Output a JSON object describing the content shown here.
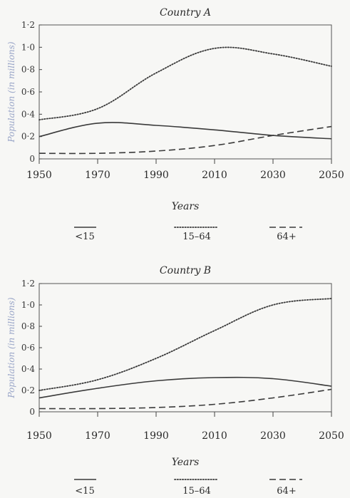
{
  "chart_data": [
    {
      "type": "line",
      "title": "Country A",
      "xlabel": "Years",
      "ylabel": "Population (in millions)",
      "xlim": [
        1950,
        2050
      ],
      "ylim": [
        0,
        1.2
      ],
      "xticks": [
        "1950",
        "1970",
        "1990",
        "2010",
        "2030",
        "2050"
      ],
      "yticks": [
        "0",
        "0·2",
        "0·4",
        "0·6",
        "0·8",
        "1·0",
        "1·2"
      ],
      "legend_position": "bottom",
      "series": [
        {
          "name": "<15",
          "style": "solid",
          "color": "#3a3a3a",
          "x": [
            1950,
            1970,
            1990,
            2010,
            2030,
            2050
          ],
          "y": [
            0.2,
            0.32,
            0.3,
            0.26,
            0.21,
            0.18
          ]
        },
        {
          "name": "15–64",
          "style": "dotted",
          "color": "#3a3a3a",
          "x": [
            1950,
            1970,
            1990,
            2010,
            2030,
            2050
          ],
          "y": [
            0.35,
            0.45,
            0.77,
            0.99,
            0.94,
            0.83
          ]
        },
        {
          "name": "64+",
          "style": "dashed",
          "color": "#3a3a3a",
          "x": [
            1950,
            1970,
            1990,
            2010,
            2030,
            2050
          ],
          "y": [
            0.05,
            0.05,
            0.07,
            0.12,
            0.21,
            0.29
          ]
        }
      ]
    },
    {
      "type": "line",
      "title": "Country B",
      "xlabel": "Years",
      "ylabel": "Population (in millions)",
      "xlim": [
        1950,
        2050
      ],
      "ylim": [
        0,
        1.2
      ],
      "xticks": [
        "1950",
        "1970",
        "1990",
        "2010",
        "2030",
        "2050"
      ],
      "yticks": [
        "0",
        "0·2",
        "0·4",
        "0·6",
        "0·8",
        "1·0",
        "1·2"
      ],
      "legend_position": "bottom",
      "series": [
        {
          "name": "<15",
          "style": "solid",
          "color": "#3a3a3a",
          "x": [
            1950,
            1970,
            1990,
            2010,
            2030,
            2050
          ],
          "y": [
            0.13,
            0.22,
            0.29,
            0.32,
            0.31,
            0.24
          ]
        },
        {
          "name": "15–64",
          "style": "dotted",
          "color": "#3a3a3a",
          "x": [
            1950,
            1970,
            1990,
            2010,
            2030,
            2050
          ],
          "y": [
            0.2,
            0.3,
            0.5,
            0.76,
            1.0,
            1.06
          ]
        },
        {
          "name": "64+",
          "style": "dashed",
          "color": "#3a3a3a",
          "x": [
            1950,
            1970,
            1990,
            2010,
            2030,
            2050
          ],
          "y": [
            0.03,
            0.03,
            0.04,
            0.07,
            0.13,
            0.21
          ]
        }
      ]
    }
  ]
}
